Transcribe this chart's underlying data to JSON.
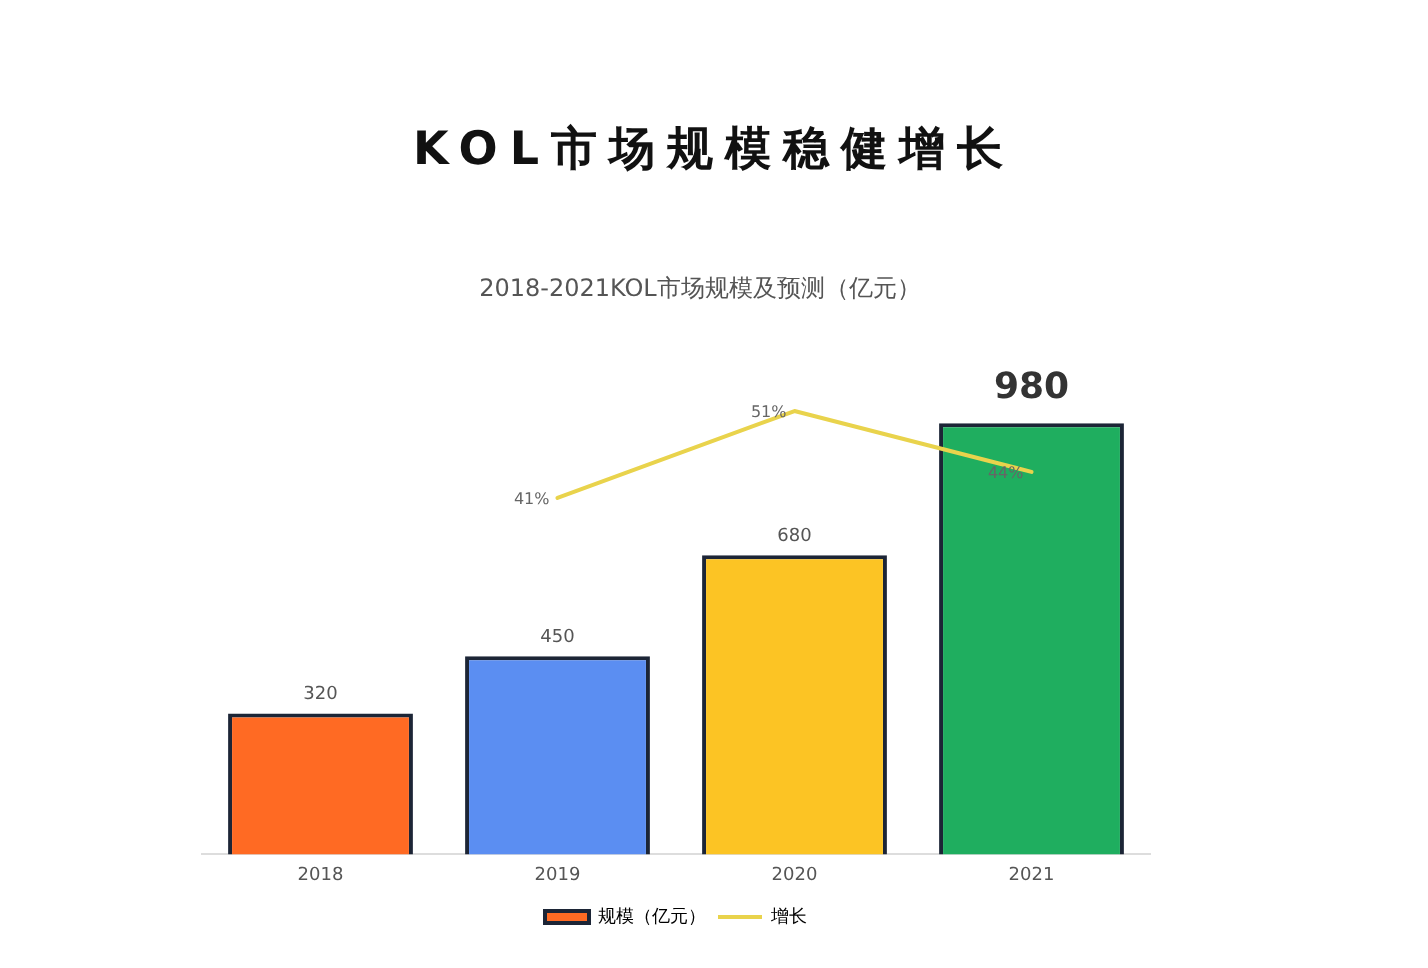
{
  "chart_data": {
    "type": "bar",
    "title": "KOL市场规模稳健增长",
    "subtitle": "2018-2021KOL市场规模及预测（亿元）",
    "categories": [
      "2018",
      "2019",
      "2020",
      "2021"
    ],
    "series": [
      {
        "name": "规模（亿元）",
        "colors": [
          "#ff6a23",
          "#5b8ef2",
          "#fcc424",
          "#1fae5f"
        ],
        "values": [
          320,
          450,
          680,
          980
        ],
        "value_labels": [
          "320",
          "450",
          "680",
          "980"
        ]
      },
      {
        "name": "增长",
        "type": "line",
        "axis": "y2",
        "color": "#e9d34c",
        "values": [
          null,
          41,
          51,
          44
        ],
        "value_labels": [
          null,
          "41%",
          "51%",
          "44%"
        ]
      }
    ],
    "legend": "bottom",
    "grid": false,
    "marker": "none",
    "tick_labels": "x"
  }
}
